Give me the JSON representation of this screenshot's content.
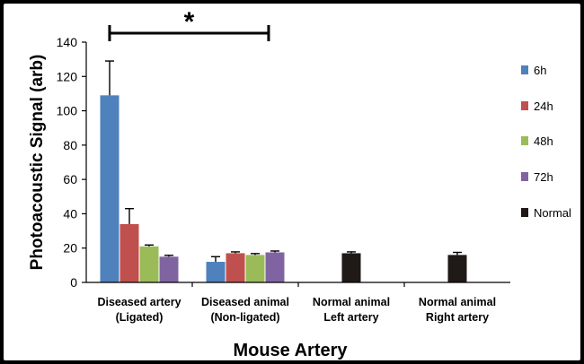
{
  "chart_data": {
    "type": "bar",
    "title": "",
    "xlabel": "Mouse Artery",
    "ylabel": "Photoacoustic Signal (arb)",
    "ylim": [
      0,
      140
    ],
    "yticks": [
      "0",
      "20",
      "40",
      "60",
      "80",
      "100",
      "120",
      "140"
    ],
    "grid": false,
    "legend_position": "right",
    "categories": [
      [
        "Diseased artery",
        "(Ligated)"
      ],
      [
        "Diseased animal",
        "(Non-ligated)"
      ],
      [
        "Normal animal",
        "Left artery"
      ],
      [
        "Normal animal",
        "Right artery"
      ]
    ],
    "series": [
      {
        "name": "6h",
        "color": "#4f81bd",
        "values": [
          109,
          12,
          null,
          null
        ],
        "errors": [
          20,
          3,
          null,
          null
        ]
      },
      {
        "name": "24h",
        "color": "#c0504d",
        "values": [
          34,
          17,
          null,
          null
        ],
        "errors": [
          9,
          0.8,
          null,
          null
        ]
      },
      {
        "name": "48h",
        "color": "#9bbb59",
        "values": [
          21,
          16,
          null,
          null
        ],
        "errors": [
          0.8,
          0.8,
          null,
          null
        ]
      },
      {
        "name": "72h",
        "color": "#8064a2",
        "values": [
          15,
          17.5,
          null,
          null
        ],
        "errors": [
          0.8,
          0.8,
          null,
          null
        ]
      },
      {
        "name": "Normal",
        "color": "#1f1a17",
        "values": [
          null,
          null,
          17,
          16
        ],
        "errors": [
          null,
          null,
          0.8,
          1.5
        ]
      }
    ],
    "significance": {
      "label": "*",
      "from_category": 0,
      "to_category": 1
    }
  }
}
